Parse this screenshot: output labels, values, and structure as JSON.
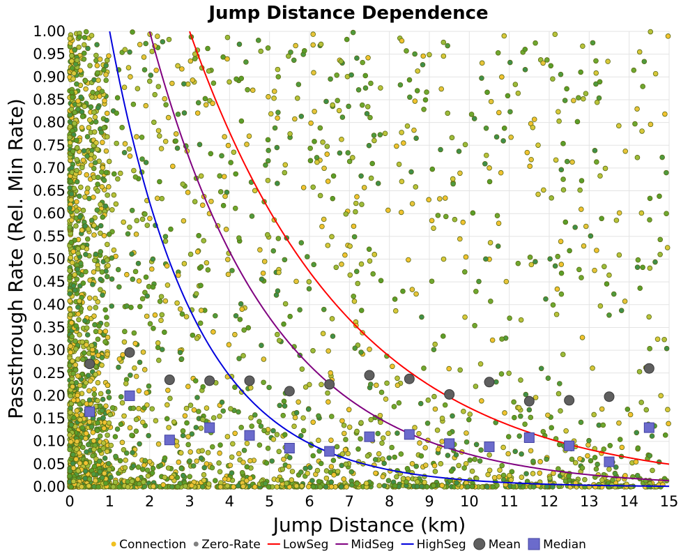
{
  "chart_data": {
    "type": "scatter",
    "title": "Jump Distance Dependence",
    "xlabel": "Jump Distance (km)",
    "ylabel": "Passthrough Rate (Rel. Min Rate)",
    "xlim": [
      0,
      15
    ],
    "ylim": [
      0,
      1
    ],
    "grid": true,
    "legend_position": "bottom",
    "x_ticks": [
      "0",
      "1",
      "2",
      "3",
      "4",
      "5",
      "6",
      "7",
      "8",
      "9",
      "10",
      "11",
      "12",
      "13",
      "14",
      "15"
    ],
    "y_ticks": [
      "0.00",
      "0.05",
      "0.10",
      "0.15",
      "0.20",
      "0.25",
      "0.30",
      "0.35",
      "0.40",
      "0.45",
      "0.50",
      "0.55",
      "0.60",
      "0.65",
      "0.70",
      "0.75",
      "0.80",
      "0.85",
      "0.90",
      "0.95",
      "1.00"
    ],
    "legend": [
      {
        "label": "Connection",
        "marker": "dot",
        "color": "#f0c020"
      },
      {
        "label": "Zero-Rate",
        "marker": "dot",
        "color": "#808080"
      },
      {
        "label": "LowSeg",
        "marker": "line",
        "color": "#ff0000"
      },
      {
        "label": "MidSeg",
        "marker": "line",
        "color": "#800080"
      },
      {
        "label": "HighSeg",
        "marker": "line",
        "color": "#0000dd"
      },
      {
        "label": "Mean",
        "marker": "circle",
        "color": "#555555"
      },
      {
        "label": "Median",
        "marker": "square",
        "color": "#6666cc"
      }
    ],
    "curves": [
      {
        "name": "LowSeg",
        "color": "#ff0000",
        "x0": 3.0,
        "decay_per_km": 0.25
      },
      {
        "name": "MidSeg",
        "color": "#800080",
        "x0": 2.0,
        "decay_per_km": 0.33
      },
      {
        "name": "HighSeg",
        "color": "#0000dd",
        "x0": 1.0,
        "decay_per_km": 0.47
      }
    ],
    "mean": {
      "x": [
        0.5,
        1.5,
        2.5,
        3.5,
        4.5,
        5.5,
        6.5,
        7.5,
        8.5,
        9.5,
        10.5,
        11.5,
        12.5,
        13.5,
        14.5
      ],
      "y": [
        0.27,
        0.295,
        0.235,
        0.233,
        0.233,
        0.21,
        0.225,
        0.245,
        0.237,
        0.203,
        0.23,
        0.188,
        0.19,
        0.198,
        0.26
      ]
    },
    "median": {
      "x": [
        0.5,
        1.5,
        2.5,
        3.5,
        4.5,
        5.5,
        6.5,
        7.5,
        8.5,
        9.5,
        10.5,
        11.5,
        12.5,
        13.5,
        14.5
      ],
      "y": [
        0.165,
        0.2,
        0.103,
        0.13,
        0.113,
        0.085,
        0.078,
        0.11,
        0.115,
        0.095,
        0.088,
        0.108,
        0.09,
        0.055,
        0.13
      ]
    },
    "scatter_colors": {
      "connection_fill": [
        "#f2c230",
        "#e8c43a",
        "#d8c83a",
        "#b8c23a",
        "#9cbb3a"
      ],
      "zero_rate_fill": [
        "#6fa830",
        "#5a9e2a",
        "#4f9a3e",
        "#3f8f4a"
      ],
      "outline": "#5a6a10"
    }
  }
}
